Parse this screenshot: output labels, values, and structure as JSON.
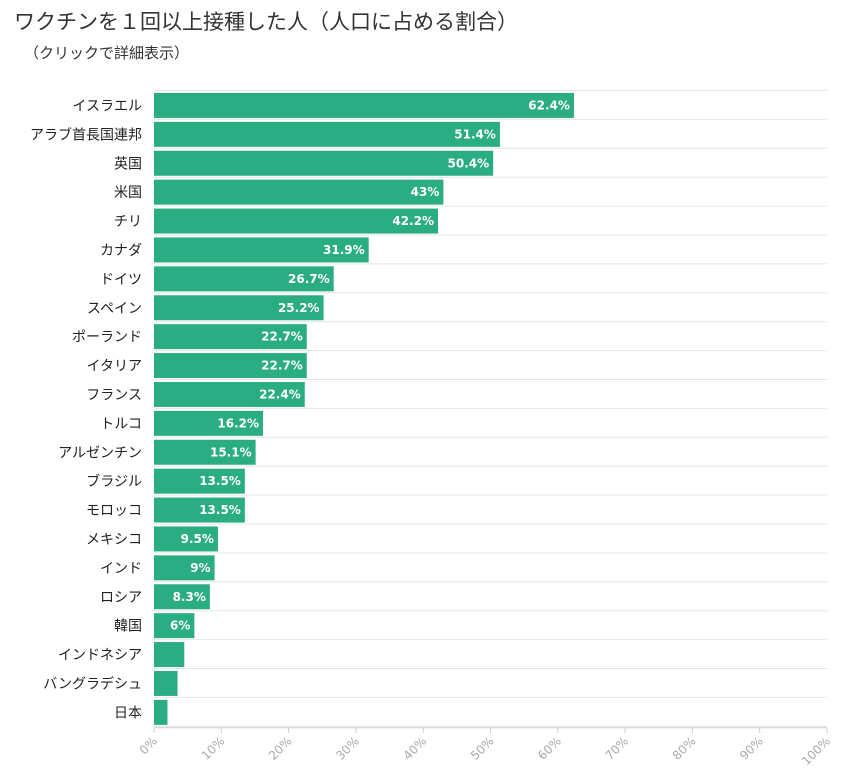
{
  "title": "ワクチンを１回以上接種した人（人口に占める割合）",
  "subtitle": "（クリックで詳細表示）",
  "colors": {
    "bar": "#2bad83",
    "grid": "#e6e6e6",
    "axis": "#cccccc"
  },
  "chart_data": {
    "type": "bar",
    "orientation": "horizontal",
    "categories": [
      "イスラエル",
      "アラブ首長国連邦",
      "英国",
      "米国",
      "チリ",
      "カナダ",
      "ドイツ",
      "スペイン",
      "ポーランド",
      "イタリア",
      "フランス",
      "トルコ",
      "アルゼンチン",
      "ブラジル",
      "モロッコ",
      "メキシコ",
      "インド",
      "ロシア",
      "韓国",
      "インドネシア",
      "バングラデシュ",
      "日本"
    ],
    "values": [
      62.4,
      51.4,
      50.4,
      43,
      42.2,
      31.9,
      26.7,
      25.2,
      22.7,
      22.7,
      22.4,
      16.2,
      15.1,
      13.5,
      13.5,
      9.5,
      9,
      8.3,
      6,
      4.5,
      3.5,
      2
    ],
    "data_labels": [
      "62.4%",
      "51.4%",
      "50.4%",
      "43%",
      "42.2%",
      "31.9%",
      "26.7%",
      "25.2%",
      "22.7%",
      "22.7%",
      "22.4%",
      "16.2%",
      "15.1%",
      "13.5%",
      "13.5%",
      "9.5%",
      "9%",
      "8.3%",
      "6%",
      "",
      "",
      ""
    ],
    "xlim": [
      0,
      100
    ],
    "x_ticks": [
      "0%",
      "10%",
      "20%",
      "30%",
      "40%",
      "50%",
      "60%",
      "70%",
      "80%",
      "90%",
      "100%"
    ],
    "grid": true,
    "legend": false
  }
}
